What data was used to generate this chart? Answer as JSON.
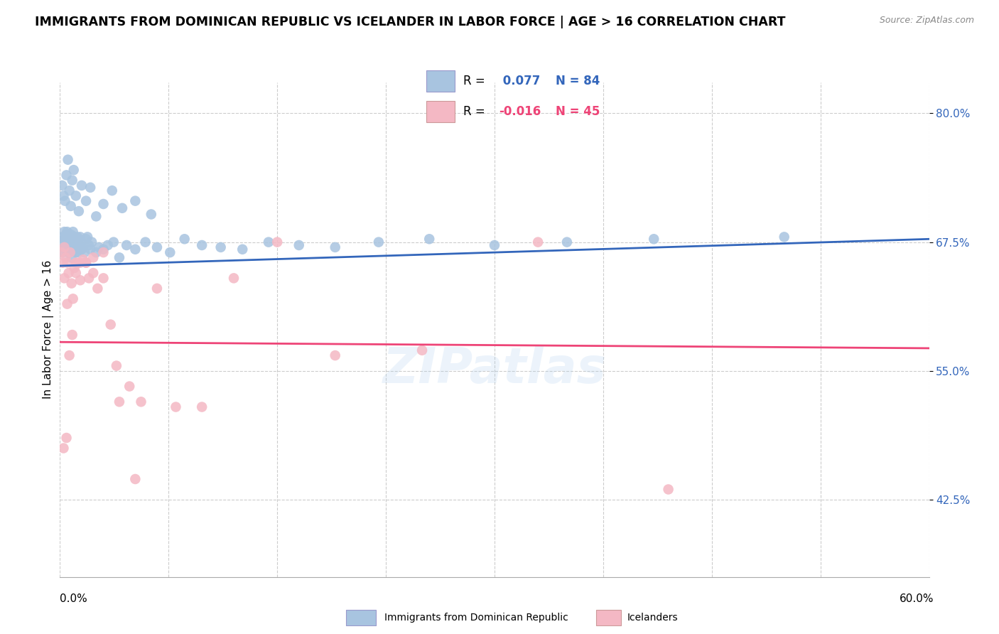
{
  "title": "IMMIGRANTS FROM DOMINICAN REPUBLIC VS ICELANDER IN LABOR FORCE | AGE > 16 CORRELATION CHART",
  "source": "Source: ZipAtlas.com",
  "ylabel_label": "In Labor Force | Age > 16",
  "xlim": [
    0.0,
    60.0
  ],
  "ylim": [
    35.0,
    83.0
  ],
  "yticks": [
    42.5,
    55.0,
    67.5,
    80.0
  ],
  "blue_R": 0.077,
  "blue_N": 84,
  "pink_R": -0.016,
  "pink_N": 45,
  "blue_color": "#a8c4e0",
  "pink_color": "#f4b8c4",
  "blue_line_color": "#3366bb",
  "pink_line_color": "#ee4477",
  "blue_text_color": "#3366bb",
  "pink_text_color": "#ee4477",
  "background_color": "#ffffff",
  "grid_color": "#cccccc",
  "blue_trend_y0": 65.2,
  "blue_trend_y1": 67.8,
  "pink_trend_y0": 57.8,
  "pink_trend_y1": 57.2,
  "blue_scatter_x": [
    0.1,
    0.2,
    0.2,
    0.3,
    0.3,
    0.3,
    0.4,
    0.4,
    0.4,
    0.5,
    0.5,
    0.6,
    0.6,
    0.6,
    0.7,
    0.7,
    0.7,
    0.8,
    0.8,
    0.8,
    0.9,
    0.9,
    1.0,
    1.0,
    1.0,
    1.1,
    1.1,
    1.2,
    1.2,
    1.3,
    1.3,
    1.4,
    1.5,
    1.5,
    1.6,
    1.7,
    1.8,
    1.9,
    2.0,
    2.1,
    2.2,
    2.5,
    2.7,
    3.0,
    3.3,
    3.7,
    4.1,
    4.6,
    5.2,
    5.9,
    6.7,
    7.6,
    8.6,
    9.8,
    11.1,
    12.6,
    14.4,
    16.5,
    19.0,
    22.0,
    25.5,
    30.0,
    35.0,
    41.0,
    50.0,
    0.15,
    0.25,
    0.35,
    0.45,
    0.55,
    0.65,
    0.75,
    0.85,
    0.95,
    1.1,
    1.3,
    1.5,
    1.8,
    2.1,
    2.5,
    3.0,
    3.6,
    4.3,
    5.2,
    6.3
  ],
  "blue_scatter_y": [
    67.5,
    68.0,
    66.5,
    67.8,
    67.0,
    68.5,
    66.8,
    67.5,
    68.2,
    67.0,
    68.5,
    66.5,
    67.8,
    68.0,
    67.2,
    66.8,
    68.0,
    67.5,
    66.0,
    68.2,
    67.0,
    68.5,
    66.8,
    67.5,
    68.0,
    67.2,
    66.5,
    68.0,
    67.8,
    66.5,
    67.2,
    68.0,
    67.5,
    66.8,
    67.0,
    66.5,
    67.8,
    68.0,
    67.2,
    66.8,
    67.5,
    66.5,
    67.0,
    66.8,
    67.2,
    67.5,
    66.0,
    67.2,
    66.8,
    67.5,
    67.0,
    66.5,
    67.8,
    67.2,
    67.0,
    66.8,
    67.5,
    67.2,
    67.0,
    67.5,
    67.8,
    67.2,
    67.5,
    67.8,
    68.0,
    73.0,
    72.0,
    71.5,
    74.0,
    75.5,
    72.5,
    71.0,
    73.5,
    74.5,
    72.0,
    70.5,
    73.0,
    71.5,
    72.8,
    70.0,
    71.2,
    72.5,
    70.8,
    71.5,
    70.2
  ],
  "pink_scatter_x": [
    0.1,
    0.2,
    0.3,
    0.3,
    0.4,
    0.5,
    0.5,
    0.6,
    0.7,
    0.8,
    0.9,
    1.0,
    1.1,
    1.2,
    1.4,
    1.6,
    1.8,
    2.0,
    2.3,
    2.6,
    3.0,
    3.5,
    4.1,
    4.8,
    5.6,
    6.7,
    8.0,
    9.8,
    12.0,
    15.0,
    19.0,
    25.0,
    33.0,
    42.0,
    0.25,
    0.45,
    0.65,
    0.85,
    1.1,
    1.4,
    1.8,
    2.3,
    3.0,
    3.9,
    5.2
  ],
  "pink_scatter_y": [
    66.5,
    65.5,
    67.0,
    64.0,
    66.0,
    61.5,
    65.5,
    64.5,
    66.5,
    63.5,
    62.0,
    65.0,
    64.5,
    65.5,
    63.8,
    65.8,
    65.5,
    64.0,
    66.0,
    63.0,
    66.5,
    59.5,
    52.0,
    53.5,
    52.0,
    63.0,
    51.5,
    51.5,
    64.0,
    67.5,
    56.5,
    57.0,
    67.5,
    43.5,
    47.5,
    48.5,
    56.5,
    58.5,
    65.5,
    65.5,
    65.5,
    64.5,
    64.0,
    55.5,
    44.5
  ],
  "title_fontsize": 12.5,
  "source_fontsize": 9,
  "ylabel_fontsize": 11,
  "tick_fontsize": 11,
  "legend_fontsize": 12
}
